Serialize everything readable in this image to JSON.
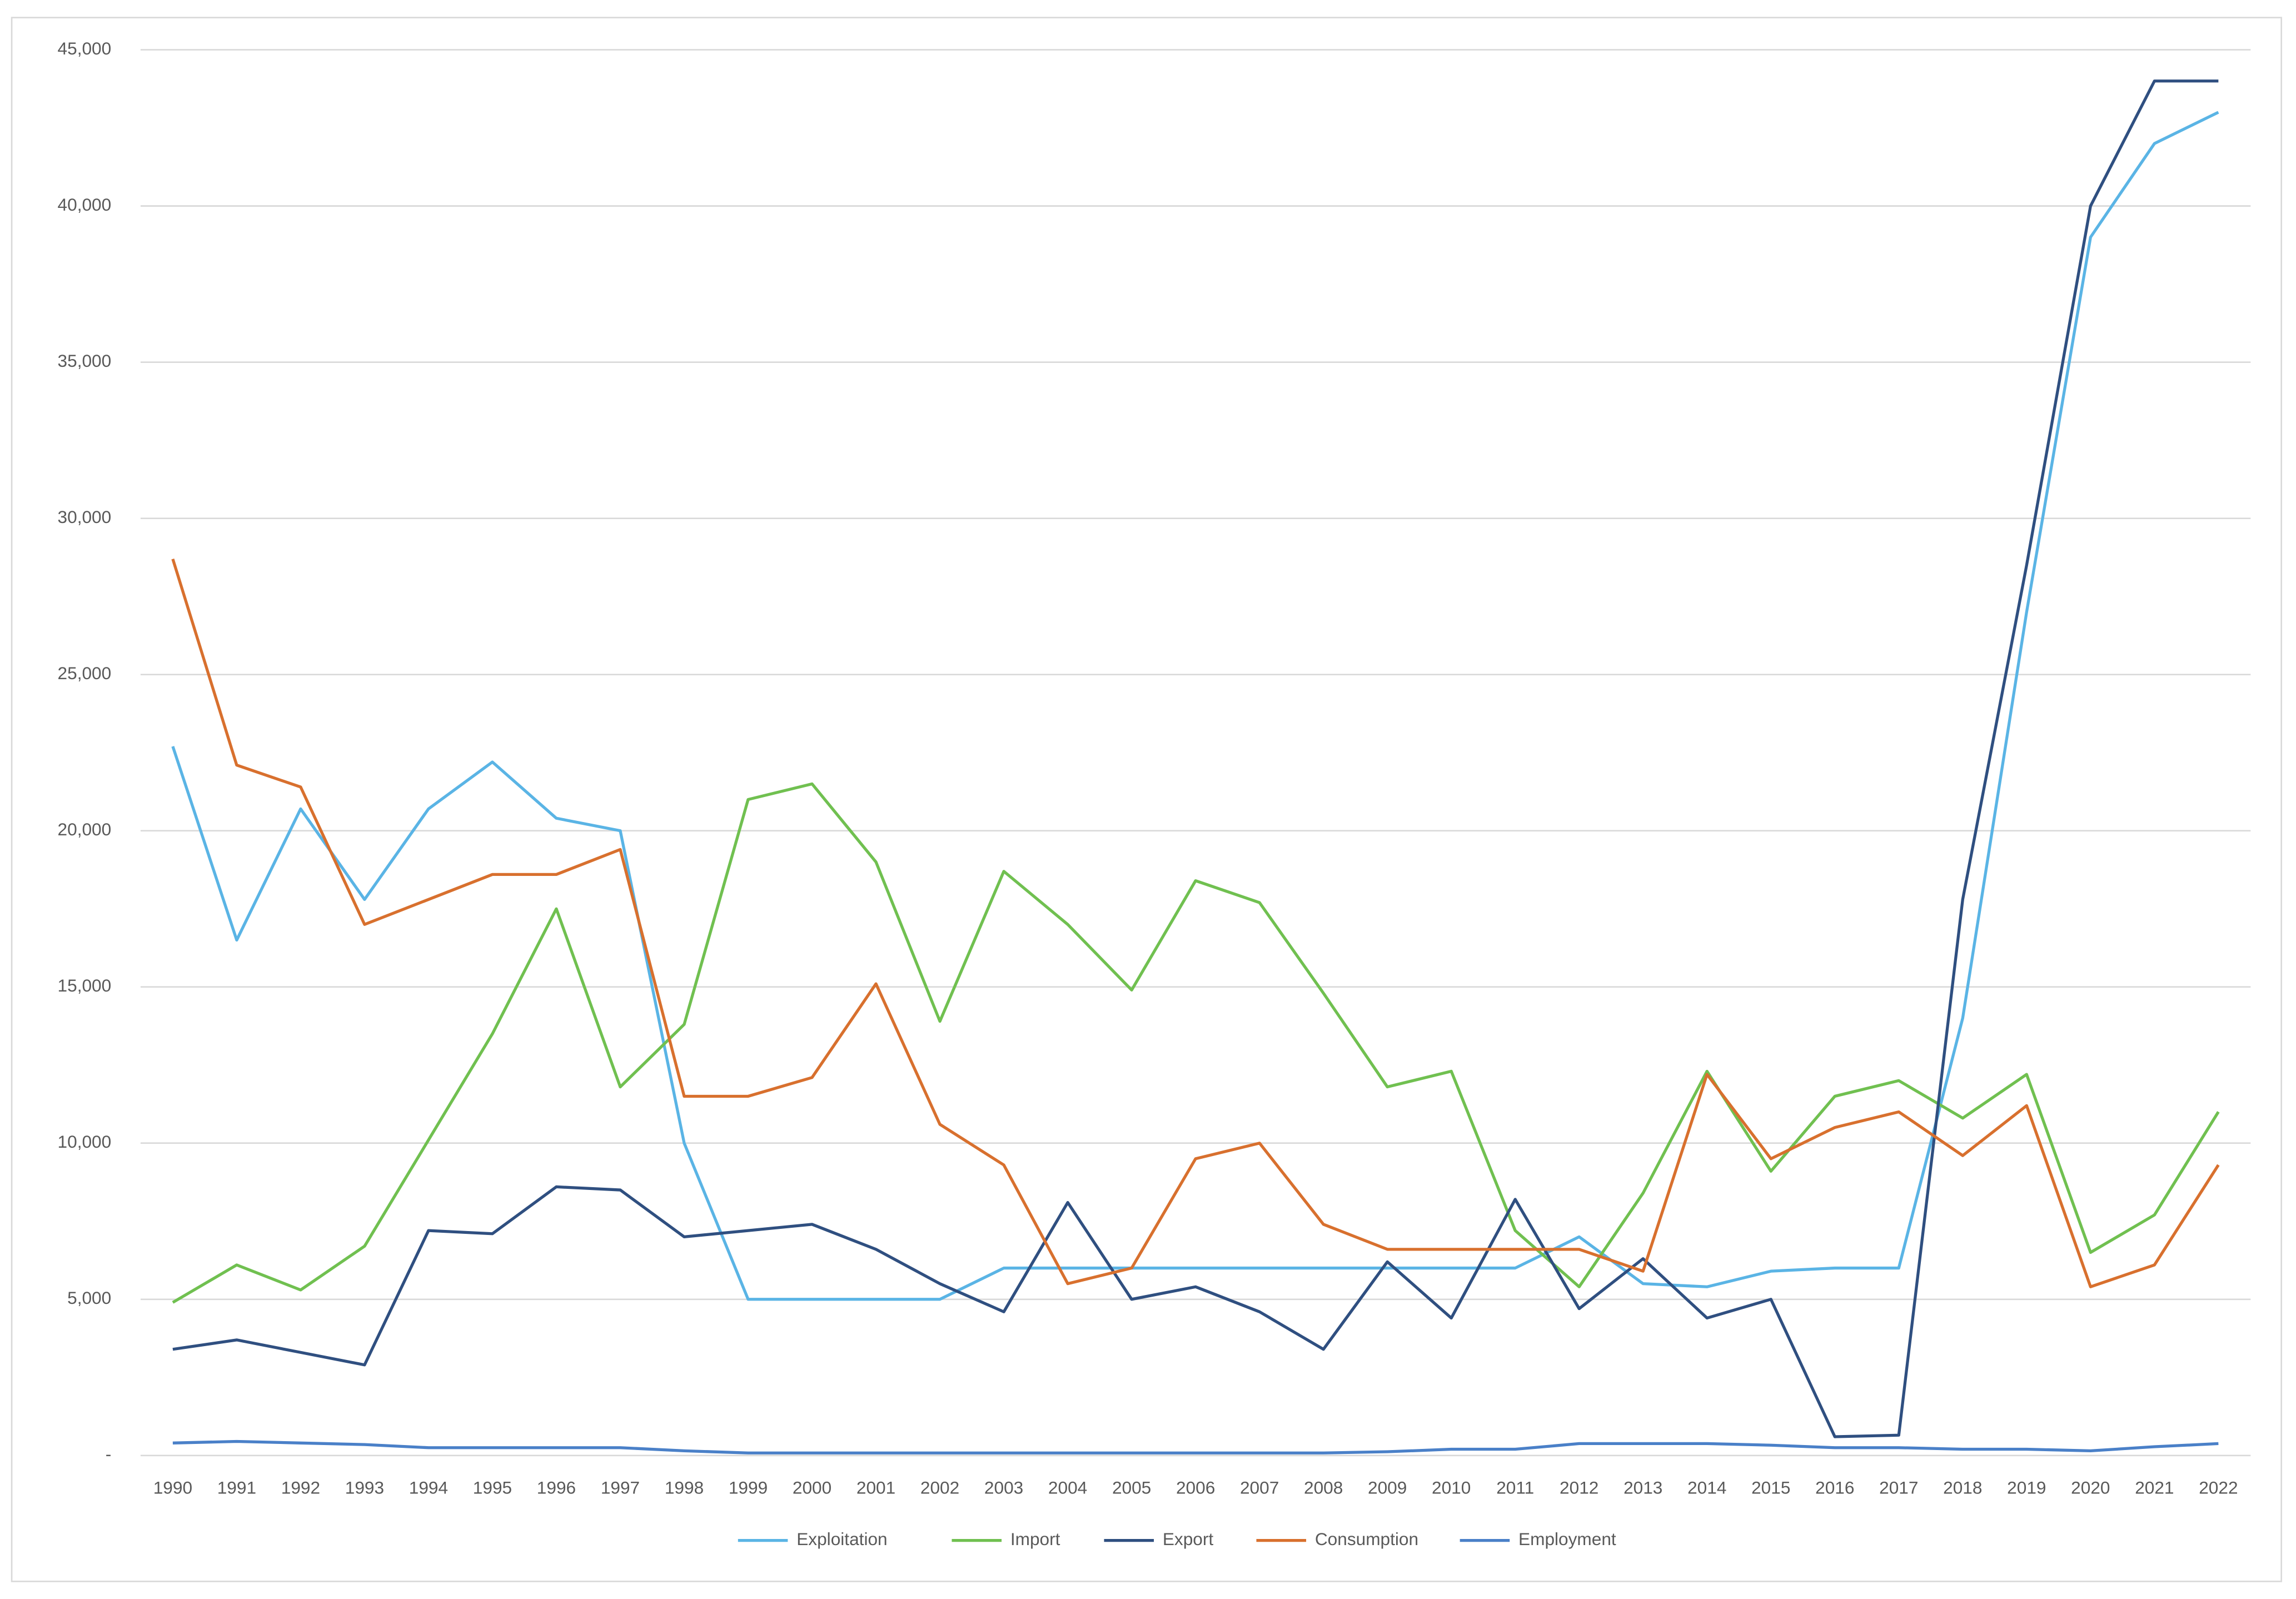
{
  "chart_data": {
    "type": "line",
    "categories": [
      "1990",
      "1991",
      "1992",
      "1993",
      "1994",
      "1995",
      "1996",
      "1997",
      "1998",
      "1999",
      "2000",
      "2001",
      "2002",
      "2003",
      "2004",
      "2005",
      "2006",
      "2007",
      "2008",
      "2009",
      "2010",
      "2011",
      "2012",
      "2013",
      "2014",
      "2015",
      "2016",
      "2017",
      "2018",
      "2019",
      "2020",
      "2021",
      "2022"
    ],
    "series": [
      {
        "name": "Exploitation",
        "color": "#5ab4e5",
        "values": [
          22700,
          16500,
          20700,
          17800,
          20700,
          22200,
          20400,
          20000,
          10000,
          5000,
          5000,
          5000,
          5000,
          6000,
          6000,
          6000,
          6000,
          6000,
          6000,
          6000,
          6000,
          6000,
          7000,
          5500,
          5400,
          5900,
          6000,
          6000,
          14000,
          27000,
          39000,
          42000,
          43000
        ]
      },
      {
        "name": "Import",
        "color": "#70c050",
        "values": [
          4900,
          6100,
          5300,
          6700,
          10100,
          13500,
          17500,
          11800,
          13800,
          21000,
          21500,
          19000,
          13900,
          18700,
          17000,
          14900,
          18400,
          17700,
          14800,
          11800,
          12300,
          7200,
          5400,
          8400,
          12300,
          9100,
          11500,
          12000,
          10800,
          12200,
          6500,
          7700,
          11000
        ]
      },
      {
        "name": "Export",
        "color": "#2f4f80",
        "values": [
          3400,
          3700,
          3300,
          2900,
          7200,
          7100,
          8600,
          8500,
          7000,
          7200,
          7400,
          6600,
          5500,
          4600,
          8100,
          5000,
          5400,
          4600,
          3400,
          6200,
          4400,
          8200,
          4700,
          6300,
          4400,
          5000,
          600,
          650,
          17800,
          28500,
          40000,
          44000,
          44000
        ]
      },
      {
        "name": "Consumption",
        "color": "#d8702e",
        "values": [
          28700,
          22100,
          21400,
          17000,
          17800,
          18600,
          18600,
          19400,
          11500,
          11500,
          12100,
          15100,
          10600,
          9300,
          5500,
          6000,
          9500,
          10000,
          7400,
          6600,
          6600,
          6600,
          6600,
          5900,
          12200,
          9500,
          10500,
          11000,
          9600,
          11200,
          5400,
          6100,
          9300
        ]
      },
      {
        "name": "Employment",
        "color": "#4a80c8",
        "values": [
          400,
          450,
          400,
          350,
          250,
          250,
          250,
          250,
          150,
          80,
          80,
          80,
          80,
          80,
          80,
          80,
          80,
          80,
          80,
          120,
          200,
          200,
          380,
          380,
          380,
          330,
          250,
          250,
          200,
          200,
          150,
          280,
          380
        ]
      }
    ],
    "ylim": [
      0,
      45000
    ],
    "yticks": [
      {
        "value": 0,
        "label": "-"
      },
      {
        "value": 5000,
        "label": "5,000"
      },
      {
        "value": 10000,
        "label": "10,000"
      },
      {
        "value": 15000,
        "label": "15,000"
      },
      {
        "value": 20000,
        "label": "20,000"
      },
      {
        "value": 25000,
        "label": "25,000"
      },
      {
        "value": 30000,
        "label": "30,000"
      },
      {
        "value": 35000,
        "label": "35,000"
      },
      {
        "value": 40000,
        "label": "40,000"
      },
      {
        "value": 45000,
        "label": "45,000"
      }
    ],
    "grid": true,
    "legend": "bottom"
  }
}
